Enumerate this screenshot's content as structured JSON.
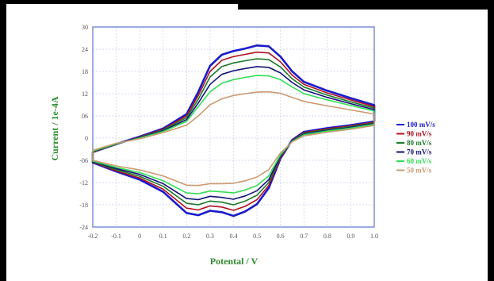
{
  "chart_data": {
    "type": "line",
    "title": "",
    "xlabel": "Potental / V",
    "ylabel": "Current / 1e-4A",
    "xlim": [
      -0.2,
      1.0
    ],
    "ylim": [
      -24,
      30
    ],
    "xticks": [
      -0.2,
      -0.1,
      0,
      0.1,
      0.2,
      0.3,
      0.4,
      0.5,
      0.6,
      0.7,
      0.8,
      0.9,
      1.0
    ],
    "xtick_labels": [
      "-0.2",
      "-0.1",
      "0",
      "0.1",
      "0.2",
      "0.3",
      "0.4",
      "0.5",
      "0.6",
      "0.7",
      "0.8",
      "0.9",
      "1.0"
    ],
    "yticks": [
      30,
      24,
      18,
      12,
      6,
      0,
      -6,
      -12,
      -18,
      -24
    ],
    "ytick_labels": [
      "30",
      "24",
      "18",
      "12",
      "06",
      "0",
      "-06",
      "-12",
      "-18",
      "-24"
    ],
    "grid": true,
    "legend_position": "right",
    "series": [
      {
        "name": "100 mV/s",
        "color": "#1a1acc",
        "anodic": [
          [
            -0.2,
            -3.8
          ],
          [
            -0.1,
            -1.6
          ],
          [
            0.0,
            0.4
          ],
          [
            0.1,
            2.6
          ],
          [
            0.2,
            6.5
          ],
          [
            0.25,
            12.5
          ],
          [
            0.3,
            19.5
          ],
          [
            0.35,
            22.5
          ],
          [
            0.4,
            23.5
          ],
          [
            0.45,
            24.2
          ],
          [
            0.5,
            25.0
          ],
          [
            0.55,
            24.8
          ],
          [
            0.6,
            22.0
          ],
          [
            0.65,
            18.0
          ],
          [
            0.7,
            15.2
          ],
          [
            0.8,
            12.8
          ],
          [
            0.9,
            10.8
          ],
          [
            1.0,
            8.9
          ]
        ],
        "cathodic": [
          [
            1.0,
            4.5
          ],
          [
            0.9,
            3.5
          ],
          [
            0.8,
            2.7
          ],
          [
            0.7,
            1.7
          ],
          [
            0.65,
            -0.5
          ],
          [
            0.6,
            -5.5
          ],
          [
            0.55,
            -13.5
          ],
          [
            0.5,
            -17.8
          ],
          [
            0.45,
            -19.8
          ],
          [
            0.4,
            -21.0
          ],
          [
            0.35,
            -20.0
          ],
          [
            0.3,
            -19.6
          ],
          [
            0.25,
            -20.8
          ],
          [
            0.2,
            -20.2
          ],
          [
            0.1,
            -14.5
          ],
          [
            0.0,
            -11.2
          ],
          [
            -0.1,
            -9.0
          ],
          [
            -0.2,
            -6.6
          ]
        ]
      },
      {
        "name": "90 mV/s",
        "color": "#b01020",
        "anodic": [
          [
            -0.2,
            -3.8
          ],
          [
            -0.1,
            -1.6
          ],
          [
            0.0,
            0.3
          ],
          [
            0.1,
            2.4
          ],
          [
            0.2,
            6.0
          ],
          [
            0.25,
            11.5
          ],
          [
            0.3,
            18.0
          ],
          [
            0.35,
            21.0
          ],
          [
            0.4,
            22.0
          ],
          [
            0.45,
            22.6
          ],
          [
            0.5,
            23.2
          ],
          [
            0.55,
            23.0
          ],
          [
            0.6,
            20.6
          ],
          [
            0.65,
            17.0
          ],
          [
            0.7,
            14.5
          ],
          [
            0.8,
            12.2
          ],
          [
            0.9,
            10.3
          ],
          [
            1.0,
            8.5
          ]
        ],
        "cathodic": [
          [
            1.0,
            4.3
          ],
          [
            0.9,
            3.3
          ],
          [
            0.8,
            2.5
          ],
          [
            0.7,
            1.5
          ],
          [
            0.65,
            -0.6
          ],
          [
            0.6,
            -5.3
          ],
          [
            0.55,
            -12.8
          ],
          [
            0.5,
            -16.6
          ],
          [
            0.45,
            -18.4
          ],
          [
            0.4,
            -19.5
          ],
          [
            0.35,
            -18.6
          ],
          [
            0.3,
            -18.3
          ],
          [
            0.25,
            -19.4
          ],
          [
            0.2,
            -18.9
          ],
          [
            0.1,
            -13.8
          ],
          [
            0.0,
            -10.8
          ],
          [
            -0.1,
            -8.8
          ],
          [
            -0.2,
            -6.5
          ]
        ]
      },
      {
        "name": "80 mV/s",
        "color": "#1a7a2a",
        "anodic": [
          [
            -0.2,
            -3.7
          ],
          [
            -0.1,
            -1.6
          ],
          [
            0.0,
            0.2
          ],
          [
            0.1,
            2.2
          ],
          [
            0.2,
            5.5
          ],
          [
            0.25,
            10.5
          ],
          [
            0.3,
            16.5
          ],
          [
            0.35,
            19.3
          ],
          [
            0.4,
            20.3
          ],
          [
            0.45,
            20.9
          ],
          [
            0.5,
            21.4
          ],
          [
            0.55,
            21.2
          ],
          [
            0.6,
            19.2
          ],
          [
            0.65,
            16.0
          ],
          [
            0.7,
            13.8
          ],
          [
            0.8,
            11.6
          ],
          [
            0.9,
            9.8
          ],
          [
            1.0,
            8.1
          ]
        ],
        "cathodic": [
          [
            1.0,
            4.1
          ],
          [
            0.9,
            3.1
          ],
          [
            0.8,
            2.3
          ],
          [
            0.7,
            1.3
          ],
          [
            0.65,
            -0.7
          ],
          [
            0.6,
            -5.0
          ],
          [
            0.55,
            -12.0
          ],
          [
            0.5,
            -15.4
          ],
          [
            0.45,
            -17.0
          ],
          [
            0.4,
            -18.0
          ],
          [
            0.35,
            -17.3
          ],
          [
            0.3,
            -17.0
          ],
          [
            0.25,
            -18.0
          ],
          [
            0.2,
            -17.6
          ],
          [
            0.1,
            -13.0
          ],
          [
            0.0,
            -10.3
          ],
          [
            -0.1,
            -8.5
          ],
          [
            -0.2,
            -6.4
          ]
        ]
      },
      {
        "name": "70 mV/s",
        "color": "#12127a",
        "anodic": [
          [
            -0.2,
            -3.6
          ],
          [
            -0.1,
            -1.5
          ],
          [
            0.0,
            0.1
          ],
          [
            0.1,
            2.0
          ],
          [
            0.2,
            5.0
          ],
          [
            0.25,
            9.5
          ],
          [
            0.3,
            14.5
          ],
          [
            0.35,
            17.2
          ],
          [
            0.4,
            18.2
          ],
          [
            0.45,
            18.8
          ],
          [
            0.5,
            19.3
          ],
          [
            0.55,
            19.1
          ],
          [
            0.6,
            17.6
          ],
          [
            0.65,
            15.0
          ],
          [
            0.7,
            13.0
          ],
          [
            0.8,
            11.0
          ],
          [
            0.9,
            9.3
          ],
          [
            1.0,
            7.7
          ]
        ],
        "cathodic": [
          [
            1.0,
            3.9
          ],
          [
            0.9,
            2.9
          ],
          [
            0.8,
            2.1
          ],
          [
            0.7,
            1.1
          ],
          [
            0.65,
            -0.8
          ],
          [
            0.6,
            -4.8
          ],
          [
            0.55,
            -11.2
          ],
          [
            0.5,
            -14.2
          ],
          [
            0.45,
            -15.6
          ],
          [
            0.4,
            -16.5
          ],
          [
            0.35,
            -16.0
          ],
          [
            0.3,
            -15.7
          ],
          [
            0.25,
            -16.6
          ],
          [
            0.2,
            -16.3
          ],
          [
            0.1,
            -12.3
          ],
          [
            0.0,
            -9.8
          ],
          [
            -0.1,
            -8.2
          ],
          [
            -0.2,
            -6.3
          ]
        ]
      },
      {
        "name": "60 mV/s",
        "color": "#33dd55",
        "anodic": [
          [
            -0.2,
            -3.5
          ],
          [
            -0.1,
            -1.5
          ],
          [
            0.0,
            0.0
          ],
          [
            0.1,
            1.8
          ],
          [
            0.2,
            4.5
          ],
          [
            0.25,
            8.5
          ],
          [
            0.3,
            12.5
          ],
          [
            0.35,
            14.8
          ],
          [
            0.4,
            15.8
          ],
          [
            0.45,
            16.4
          ],
          [
            0.5,
            16.9
          ],
          [
            0.55,
            16.8
          ],
          [
            0.6,
            15.8
          ],
          [
            0.65,
            13.8
          ],
          [
            0.7,
            12.0
          ],
          [
            0.8,
            10.3
          ],
          [
            0.9,
            8.8
          ],
          [
            1.0,
            7.3
          ]
        ],
        "cathodic": [
          [
            1.0,
            3.7
          ],
          [
            0.9,
            2.7
          ],
          [
            0.8,
            1.9
          ],
          [
            0.7,
            0.9
          ],
          [
            0.65,
            -0.9
          ],
          [
            0.6,
            -4.5
          ],
          [
            0.55,
            -10.2
          ],
          [
            0.5,
            -12.8
          ],
          [
            0.45,
            -14.0
          ],
          [
            0.4,
            -14.8
          ],
          [
            0.35,
            -14.5
          ],
          [
            0.3,
            -14.3
          ],
          [
            0.25,
            -15.0
          ],
          [
            0.2,
            -14.8
          ],
          [
            0.1,
            -11.5
          ],
          [
            0.0,
            -9.3
          ],
          [
            -0.1,
            -7.9
          ],
          [
            -0.2,
            -6.2
          ]
        ]
      },
      {
        "name": "50 mV/s",
        "color": "#cc9a70",
        "anodic": [
          [
            -0.2,
            -3.3
          ],
          [
            -0.1,
            -1.4
          ],
          [
            0.0,
            -0.2
          ],
          [
            0.1,
            1.5
          ],
          [
            0.2,
            3.5
          ],
          [
            0.25,
            6.0
          ],
          [
            0.3,
            9.0
          ],
          [
            0.35,
            10.6
          ],
          [
            0.4,
            11.5
          ],
          [
            0.45,
            12.0
          ],
          [
            0.5,
            12.4
          ],
          [
            0.55,
            12.5
          ],
          [
            0.6,
            12.1
          ],
          [
            0.65,
            11.0
          ],
          [
            0.7,
            9.9
          ],
          [
            0.8,
            8.7
          ],
          [
            0.9,
            7.6
          ],
          [
            1.0,
            6.5
          ]
        ],
        "cathodic": [
          [
            1.0,
            3.4
          ],
          [
            0.9,
            2.4
          ],
          [
            0.8,
            1.6
          ],
          [
            0.7,
            0.6
          ],
          [
            0.65,
            -1.0
          ],
          [
            0.6,
            -4.0
          ],
          [
            0.55,
            -8.5
          ],
          [
            0.5,
            -10.5
          ],
          [
            0.45,
            -11.5
          ],
          [
            0.4,
            -12.2
          ],
          [
            0.35,
            -12.3
          ],
          [
            0.3,
            -12.3
          ],
          [
            0.25,
            -12.8
          ],
          [
            0.2,
            -12.7
          ],
          [
            0.1,
            -10.2
          ],
          [
            0.0,
            -8.6
          ],
          [
            -0.1,
            -7.5
          ],
          [
            -0.2,
            -6.0
          ]
        ]
      }
    ]
  }
}
